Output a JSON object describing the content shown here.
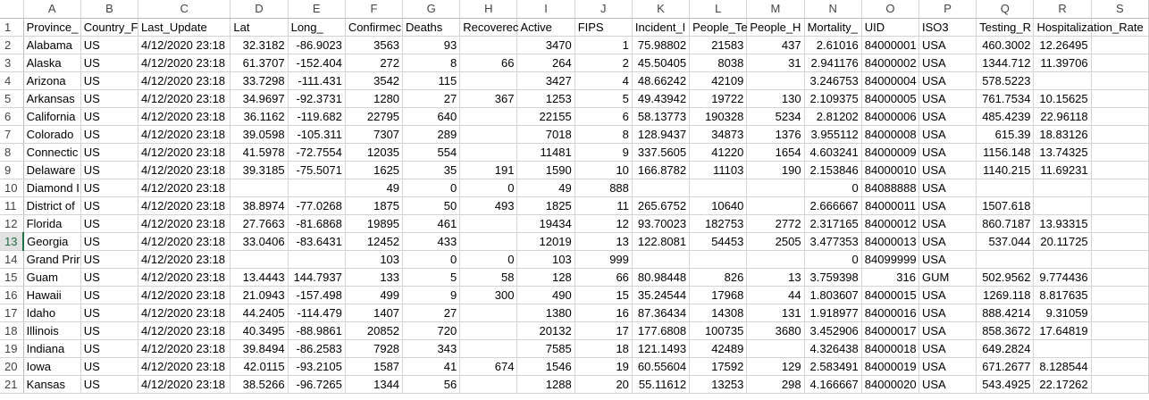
{
  "columns": [
    "A",
    "B",
    "C",
    "D",
    "E",
    "F",
    "G",
    "H",
    "I",
    "J",
    "K",
    "L",
    "M",
    "N",
    "O",
    "P",
    "Q",
    "R",
    "S"
  ],
  "header_row": [
    "Province_",
    "Country_F",
    "Last_Update",
    "Lat",
    "Long_",
    "Confirmec",
    "Deaths",
    "Recoverec",
    "Active",
    "FIPS",
    "Incident_I",
    "People_Te",
    "People_H",
    "Mortality_",
    "UID",
    "ISO3",
    "Testing_R",
    "Hospitalization_Rate",
    ""
  ],
  "rows": [
    [
      "Alabama",
      "US",
      "4/12/2020 23:18",
      "32.3182",
      "-86.9023",
      "3563",
      "93",
      "",
      "3470",
      "1",
      "75.98802",
      "21583",
      "437",
      "2.61016",
      "84000001",
      "USA",
      "460.3002",
      "12.26495",
      ""
    ],
    [
      "Alaska",
      "US",
      "4/12/2020 23:18",
      "61.3707",
      "-152.404",
      "272",
      "8",
      "66",
      "264",
      "2",
      "45.50405",
      "8038",
      "31",
      "2.941176",
      "84000002",
      "USA",
      "1344.712",
      "11.39706",
      ""
    ],
    [
      "Arizona",
      "US",
      "4/12/2020 23:18",
      "33.7298",
      "-111.431",
      "3542",
      "115",
      "",
      "3427",
      "4",
      "48.66242",
      "42109",
      "",
      "3.246753",
      "84000004",
      "USA",
      "578.5223",
      "",
      ""
    ],
    [
      "Arkansas",
      "US",
      "4/12/2020 23:18",
      "34.9697",
      "-92.3731",
      "1280",
      "27",
      "367",
      "1253",
      "5",
      "49.43942",
      "19722",
      "130",
      "2.109375",
      "84000005",
      "USA",
      "761.7534",
      "10.15625",
      ""
    ],
    [
      "California",
      "US",
      "4/12/2020 23:18",
      "36.1162",
      "-119.682",
      "22795",
      "640",
      "",
      "22155",
      "6",
      "58.13773",
      "190328",
      "5234",
      "2.81202",
      "84000006",
      "USA",
      "485.4239",
      "22.96118",
      ""
    ],
    [
      "Colorado",
      "US",
      "4/12/2020 23:18",
      "39.0598",
      "-105.311",
      "7307",
      "289",
      "",
      "7018",
      "8",
      "128.9437",
      "34873",
      "1376",
      "3.955112",
      "84000008",
      "USA",
      "615.39",
      "18.83126",
      ""
    ],
    [
      "Connectic",
      "US",
      "4/12/2020 23:18",
      "41.5978",
      "-72.7554",
      "12035",
      "554",
      "",
      "11481",
      "9",
      "337.5605",
      "41220",
      "1654",
      "4.603241",
      "84000009",
      "USA",
      "1156.148",
      "13.74325",
      ""
    ],
    [
      "Delaware",
      "US",
      "4/12/2020 23:18",
      "39.3185",
      "-75.5071",
      "1625",
      "35",
      "191",
      "1590",
      "10",
      "166.8782",
      "11103",
      "190",
      "2.153846",
      "84000010",
      "USA",
      "1140.215",
      "11.69231",
      ""
    ],
    [
      "Diamond I",
      "US",
      "4/12/2020 23:18",
      "",
      "",
      "49",
      "0",
      "0",
      "49",
      "888",
      "",
      "",
      "",
      "0",
      "84088888",
      "USA",
      "",
      "",
      ""
    ],
    [
      "District of",
      "US",
      "4/12/2020 23:18",
      "38.8974",
      "-77.0268",
      "1875",
      "50",
      "493",
      "1825",
      "11",
      "265.6752",
      "10640",
      "",
      "2.666667",
      "84000011",
      "USA",
      "1507.618",
      "",
      ""
    ],
    [
      "Florida",
      "US",
      "4/12/2020 23:18",
      "27.7663",
      "-81.6868",
      "19895",
      "461",
      "",
      "19434",
      "12",
      "93.70023",
      "182753",
      "2772",
      "2.317165",
      "84000012",
      "USA",
      "860.7187",
      "13.93315",
      ""
    ],
    [
      "Georgia",
      "US",
      "4/12/2020 23:18",
      "33.0406",
      "-83.6431",
      "12452",
      "433",
      "",
      "12019",
      "13",
      "122.8081",
      "54453",
      "2505",
      "3.477353",
      "84000013",
      "USA",
      "537.044",
      "20.11725",
      ""
    ],
    [
      "Grand Prir",
      "US",
      "4/12/2020 23:18",
      "",
      "",
      "103",
      "0",
      "0",
      "103",
      "999",
      "",
      "",
      "",
      "0",
      "84099999",
      "USA",
      "",
      "",
      ""
    ],
    [
      "Guam",
      "US",
      "4/12/2020 23:18",
      "13.4443",
      "144.7937",
      "133",
      "5",
      "58",
      "128",
      "66",
      "80.98448",
      "826",
      "13",
      "3.759398",
      "316",
      "GUM",
      "502.9562",
      "9.774436",
      ""
    ],
    [
      "Hawaii",
      "US",
      "4/12/2020 23:18",
      "21.0943",
      "-157.498",
      "499",
      "9",
      "300",
      "490",
      "15",
      "35.24544",
      "17968",
      "44",
      "1.803607",
      "84000015",
      "USA",
      "1269.118",
      "8.817635",
      ""
    ],
    [
      "Idaho",
      "US",
      "4/12/2020 23:18",
      "44.2405",
      "-114.479",
      "1407",
      "27",
      "",
      "1380",
      "16",
      "87.36434",
      "14308",
      "131",
      "1.918977",
      "84000016",
      "USA",
      "888.4214",
      "9.31059",
      ""
    ],
    [
      "Illinois",
      "US",
      "4/12/2020 23:18",
      "40.3495",
      "-88.9861",
      "20852",
      "720",
      "",
      "20132",
      "17",
      "177.6808",
      "100735",
      "3680",
      "3.452906",
      "84000017",
      "USA",
      "858.3672",
      "17.64819",
      ""
    ],
    [
      "Indiana",
      "US",
      "4/12/2020 23:18",
      "39.8494",
      "-86.2583",
      "7928",
      "343",
      "",
      "7585",
      "18",
      "121.1493",
      "42489",
      "",
      "4.326438",
      "84000018",
      "USA",
      "649.2824",
      "",
      ""
    ],
    [
      "Iowa",
      "US",
      "4/12/2020 23:18",
      "42.0115",
      "-93.2105",
      "1587",
      "41",
      "674",
      "1546",
      "19",
      "60.55604",
      "17592",
      "129",
      "2.583491",
      "84000019",
      "USA",
      "671.2677",
      "8.128544",
      ""
    ],
    [
      "Kansas",
      "US",
      "4/12/2020 23:18",
      "38.5266",
      "-96.7265",
      "1344",
      "56",
      "",
      "1288",
      "20",
      "55.11612",
      "13253",
      "298",
      "4.166667",
      "84000020",
      "USA",
      "543.4925",
      "22.17262",
      ""
    ]
  ],
  "active_row": 13
}
